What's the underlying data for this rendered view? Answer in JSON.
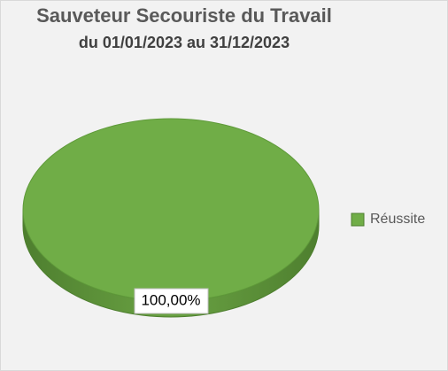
{
  "chart_data": {
    "type": "pie",
    "title": "Sauveteur Secouriste du Travail",
    "subtitle": "du 01/01/2023 au 31/12/2023",
    "categories": [
      "Réussite"
    ],
    "values": [
      100
    ],
    "value_labels": [
      "100,00%"
    ],
    "colors": [
      "#70ad47"
    ],
    "legend": "right"
  }
}
